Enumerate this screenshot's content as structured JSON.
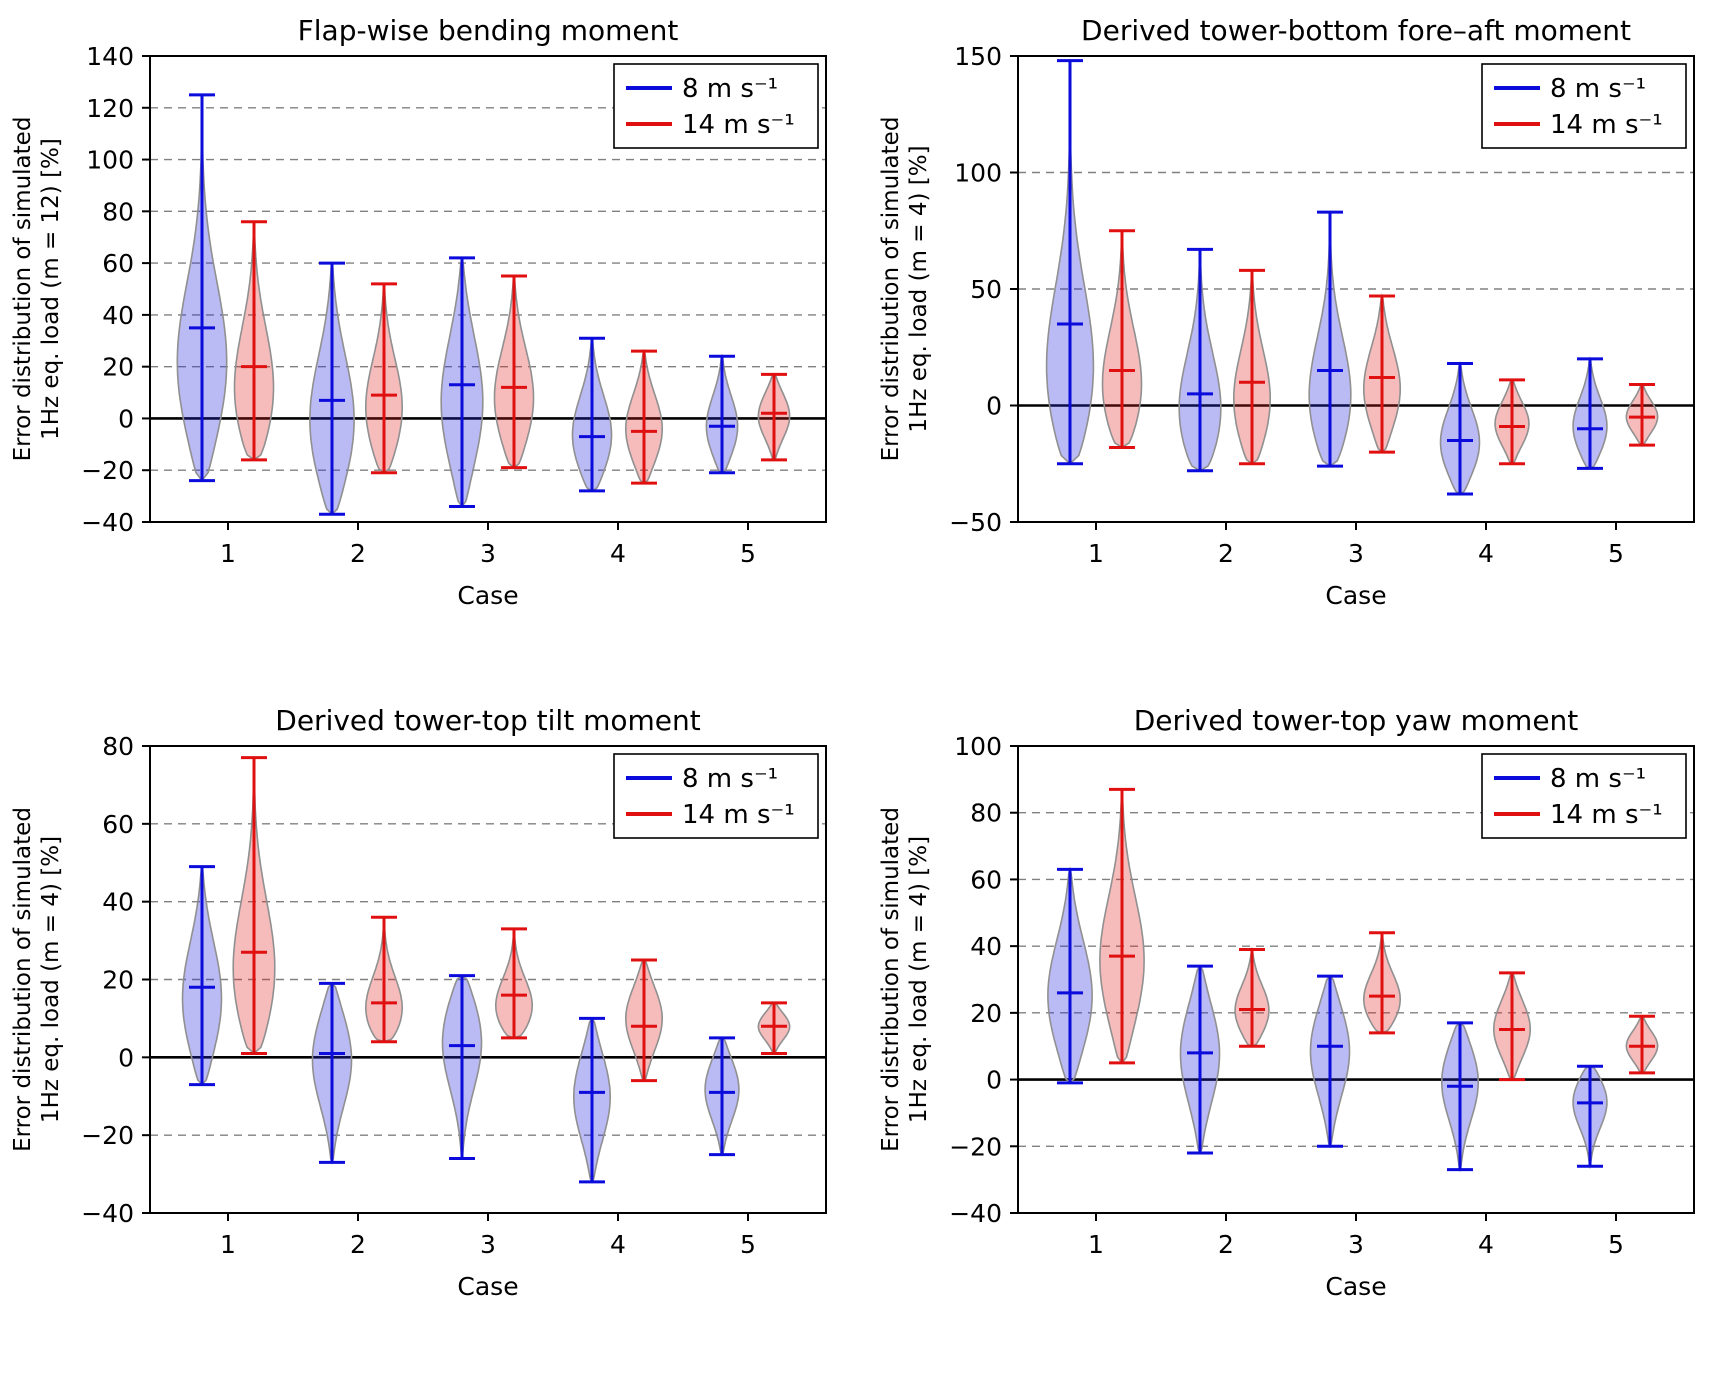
{
  "figure": {
    "background": "#ffffff"
  },
  "style": {
    "blue": "#0b0bdc",
    "red": "#e01010",
    "blue_fill": "rgba(40,40,220,0.32)",
    "red_fill": "rgba(225,30,30,0.30)",
    "violin_edge": "#909090",
    "grid": "#808080",
    "zero_line": "#000000",
    "text": "#000000"
  },
  "chart_data": [
    {
      "type": "violin",
      "title": "Flap-wise bending moment",
      "xlabel": "Case",
      "ylabel": [
        "Error distribution of simulated",
        "1Hz eq. load (m = 12) [%]"
      ],
      "ylim": [
        -40,
        140
      ],
      "ytick_step": 20,
      "categories": [
        1,
        2,
        3,
        4,
        5
      ],
      "legend_position": "upper right",
      "grid": true,
      "series": [
        {
          "key": "blue",
          "name": "8 m s⁻¹",
          "color": "#0b0bdc",
          "fill": "rgba(40,40,220,0.32)",
          "violins": [
            {
              "min": -24,
              "max": 125,
              "mean": 35,
              "peak": 18,
              "w": 0.19,
              "s": 0.22
            },
            {
              "min": -37,
              "max": 60,
              "mean": 7,
              "peak": -3,
              "w": 0.17
            },
            {
              "min": -34,
              "max": 62,
              "mean": 13,
              "peak": 5,
              "w": 0.16
            },
            {
              "min": -28,
              "max": 31,
              "mean": -7,
              "peak": -8,
              "w": 0.15
            },
            {
              "min": -21,
              "max": 24,
              "mean": -3,
              "peak": -4,
              "w": 0.12
            }
          ]
        },
        {
          "key": "red",
          "name": "14 m s⁻¹",
          "color": "#e01010",
          "fill": "rgba(225,30,30,0.30)",
          "violins": [
            {
              "min": -16,
              "max": 76,
              "mean": 20,
              "peak": 8,
              "w": 0.15
            },
            {
              "min": -21,
              "max": 52,
              "mean": 9,
              "peak": 2,
              "w": 0.14
            },
            {
              "min": -19,
              "max": 55,
              "mean": 12,
              "peak": 6,
              "w": 0.15
            },
            {
              "min": -25,
              "max": 26,
              "mean": -5,
              "peak": -5,
              "w": 0.14
            },
            {
              "min": -16,
              "max": 17,
              "mean": 2,
              "peak": 1,
              "w": 0.12
            }
          ]
        }
      ]
    },
    {
      "type": "violin",
      "title": "Derived tower-bottom fore–aft moment",
      "xlabel": "Case",
      "ylabel": [
        "Error distribution of simulated",
        "1Hz eq. load (m = 4) [%]"
      ],
      "ylim": [
        -50,
        150
      ],
      "ytick_step": 50,
      "categories": [
        1,
        2,
        3,
        4,
        5
      ],
      "legend_position": "upper right",
      "grid": true,
      "series": [
        {
          "key": "blue",
          "name": "8 m s⁻¹",
          "color": "#0b0bdc",
          "fill": "rgba(40,40,220,0.32)",
          "violins": [
            {
              "min": -25,
              "max": 148,
              "mean": 35,
              "peak": 10,
              "w": 0.18,
              "s": 0.22
            },
            {
              "min": -28,
              "max": 67,
              "mean": 5,
              "peak": -6,
              "w": 0.16
            },
            {
              "min": -26,
              "max": 83,
              "mean": 15,
              "peak": 0,
              "w": 0.16,
              "s": 0.25
            },
            {
              "min": -38,
              "max": 18,
              "mean": -15,
              "peak": -17,
              "w": 0.15
            },
            {
              "min": -27,
              "max": 20,
              "mean": -10,
              "peak": -10,
              "w": 0.13
            }
          ]
        },
        {
          "key": "red",
          "name": "14 m s⁻¹",
          "color": "#e01010",
          "fill": "rgba(225,30,30,0.30)",
          "violins": [
            {
              "min": -18,
              "max": 75,
              "mean": 15,
              "peak": 5,
              "w": 0.15
            },
            {
              "min": -25,
              "max": 58,
              "mean": 10,
              "peak": 0,
              "w": 0.14
            },
            {
              "min": -20,
              "max": 47,
              "mean": 12,
              "peak": 6,
              "w": 0.14
            },
            {
              "min": -25,
              "max": 11,
              "mean": -9,
              "peak": -8,
              "w": 0.13
            },
            {
              "min": -17,
              "max": 9,
              "mean": -5,
              "peak": -5,
              "w": 0.12
            }
          ]
        }
      ]
    },
    {
      "type": "violin",
      "title": "Derived tower-top tilt moment",
      "xlabel": "Case",
      "ylabel": [
        "Error distribution of simulated",
        "1Hz eq. load (m = 4) [%]"
      ],
      "ylim": [
        -40,
        80
      ],
      "ytick_step": 20,
      "categories": [
        1,
        2,
        3,
        4,
        5
      ],
      "legend_position": "upper right",
      "grid": true,
      "series": [
        {
          "key": "blue",
          "name": "8 m s⁻¹",
          "color": "#0b0bdc",
          "fill": "rgba(40,40,220,0.32)",
          "violins": [
            {
              "min": -7,
              "max": 49,
              "mean": 18,
              "peak": 14,
              "w": 0.15
            },
            {
              "min": -27,
              "max": 19,
              "mean": 1,
              "peak": 0,
              "w": 0.15
            },
            {
              "min": -26,
              "max": 21,
              "mean": 3,
              "peak": 5,
              "w": 0.15
            },
            {
              "min": -32,
              "max": 10,
              "mean": -9,
              "peak": -10,
              "w": 0.14
            },
            {
              "min": -25,
              "max": 5,
              "mean": -9,
              "peak": -8,
              "w": 0.13
            }
          ]
        },
        {
          "key": "red",
          "name": "14 m s⁻¹",
          "color": "#e01010",
          "fill": "rgba(225,30,30,0.30)",
          "violins": [
            {
              "min": 1,
              "max": 77,
              "mean": 27,
              "peak": 20,
              "w": 0.16,
              "s": 0.25
            },
            {
              "min": 4,
              "max": 36,
              "mean": 14,
              "peak": 11,
              "w": 0.14
            },
            {
              "min": 5,
              "max": 33,
              "mean": 16,
              "peak": 12,
              "w": 0.14
            },
            {
              "min": -6,
              "max": 25,
              "mean": 8,
              "peak": 10,
              "w": 0.14
            },
            {
              "min": 1,
              "max": 14,
              "mean": 8,
              "peak": 8,
              "w": 0.12
            }
          ]
        }
      ]
    },
    {
      "type": "violin",
      "title": "Derived tower-top yaw moment",
      "xlabel": "Case",
      "ylabel": [
        "Error distribution of simulated",
        "1Hz eq. load (m = 4) [%]"
      ],
      "ylim": [
        -40,
        100
      ],
      "ytick_step": 20,
      "categories": [
        1,
        2,
        3,
        4,
        5
      ],
      "legend_position": "upper right",
      "grid": true,
      "series": [
        {
          "key": "blue",
          "name": "8 m s⁻¹",
          "color": "#0b0bdc",
          "fill": "rgba(40,40,220,0.32)",
          "violins": [
            {
              "min": -1,
              "max": 63,
              "mean": 26,
              "peak": 24,
              "w": 0.17
            },
            {
              "min": -22,
              "max": 34,
              "mean": 8,
              "peak": 8,
              "w": 0.15
            },
            {
              "min": -20,
              "max": 31,
              "mean": 10,
              "peak": 9,
              "w": 0.15
            },
            {
              "min": -27,
              "max": 17,
              "mean": -2,
              "peak": 0,
              "w": 0.14
            },
            {
              "min": -26,
              "max": 4,
              "mean": -7,
              "peak": -6,
              "w": 0.13
            }
          ]
        },
        {
          "key": "red",
          "name": "14 m s⁻¹",
          "color": "#e01010",
          "fill": "rgba(225,30,30,0.30)",
          "violins": [
            {
              "min": 5,
              "max": 87,
              "mean": 37,
              "peak": 34,
              "w": 0.17,
              "s": 0.25
            },
            {
              "min": 10,
              "max": 39,
              "mean": 21,
              "peak": 20,
              "w": 0.13
            },
            {
              "min": 14,
              "max": 44,
              "mean": 25,
              "peak": 23,
              "w": 0.14
            },
            {
              "min": 0,
              "max": 32,
              "mean": 15,
              "peak": 15,
              "w": 0.14
            },
            {
              "min": 2,
              "max": 19,
              "mean": 10,
              "peak": 10,
              "w": 0.12
            }
          ]
        }
      ]
    }
  ]
}
